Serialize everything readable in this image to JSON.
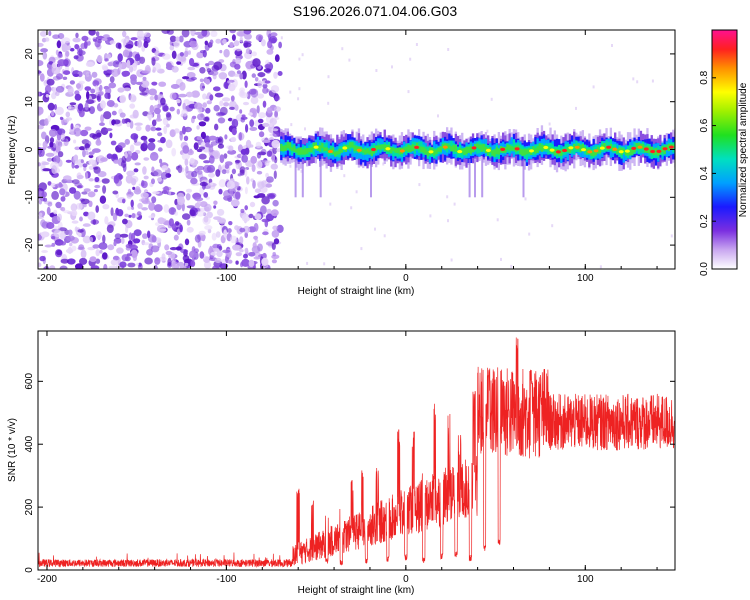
{
  "chart_data": [
    {
      "type": "heatmap",
      "title": "S196.2026.071.04.06.G03",
      "xlabel": "Height of straight line (km)",
      "ylabel": "Frequency (Hz)",
      "xlim": [
        -205,
        150
      ],
      "ylim": [
        -25,
        25
      ],
      "x_ticks": [
        -200,
        -100,
        0,
        100
      ],
      "y_ticks": [
        -20,
        -10,
        0,
        10,
        20
      ],
      "colorbar": {
        "label": "Normalized spectral amplitude",
        "range": [
          0,
          1
        ],
        "ticks": [
          "0.0",
          "0.2",
          "0.4",
          "0.6",
          "0.8"
        ]
      },
      "description_data": {
        "noise_region_x": [
          -205,
          -70
        ],
        "signal_region_x": [
          -70,
          150
        ],
        "signal_center_frequency_hz": 0,
        "signal_bandwidth_hz": 5
      }
    },
    {
      "type": "line",
      "xlabel": "Height of straight line (km)",
      "ylabel": "SNR (10 * v/v)",
      "xlim": [
        -205,
        150
      ],
      "ylim": [
        0,
        760
      ],
      "x_ticks": [
        -200,
        -100,
        0,
        100
      ],
      "y_ticks": [
        0,
        200,
        400,
        600
      ],
      "series_color": "#ee2222",
      "segments": [
        {
          "x_range": [
            -205,
            -63
          ],
          "level": 22,
          "spread": 15
        },
        {
          "x_range": [
            -63,
            40
          ],
          "level": "rising 30 to 300 with spikes",
          "spread": 150
        },
        {
          "x_range": [
            40,
            80
          ],
          "level": 500,
          "spread": 150
        },
        {
          "x_range": [
            80,
            150
          ],
          "level": 470,
          "spread": 90
        }
      ],
      "spike_peaks": [
        {
          "x": -60,
          "y": 260
        },
        {
          "x": -52,
          "y": 240
        },
        {
          "x": -44,
          "y": 180
        },
        {
          "x": -36,
          "y": 200
        },
        {
          "x": -30,
          "y": 290
        },
        {
          "x": -24,
          "y": 340
        },
        {
          "x": -16,
          "y": 330
        },
        {
          "x": -10,
          "y": 410
        },
        {
          "x": -4,
          "y": 460
        },
        {
          "x": 4,
          "y": 440
        },
        {
          "x": 10,
          "y": 350
        },
        {
          "x": 16,
          "y": 530
        },
        {
          "x": 24,
          "y": 500
        },
        {
          "x": 30,
          "y": 430
        },
        {
          "x": 38,
          "y": 580
        },
        {
          "x": 46,
          "y": 660
        },
        {
          "x": 54,
          "y": 610
        },
        {
          "x": 62,
          "y": 760
        },
        {
          "x": 70,
          "y": 640
        }
      ],
      "dips": [
        {
          "x": -44,
          "y": 20
        },
        {
          "x": -36,
          "y": 15
        },
        {
          "x": -22,
          "y": 18
        },
        {
          "x": -10,
          "y": 25
        },
        {
          "x": 0,
          "y": 30
        },
        {
          "x": 10,
          "y": 22
        },
        {
          "x": 20,
          "y": 35
        },
        {
          "x": 28,
          "y": 40
        },
        {
          "x": 36,
          "y": 28
        },
        {
          "x": 44,
          "y": 60
        },
        {
          "x": 52,
          "y": 80
        }
      ]
    }
  ]
}
